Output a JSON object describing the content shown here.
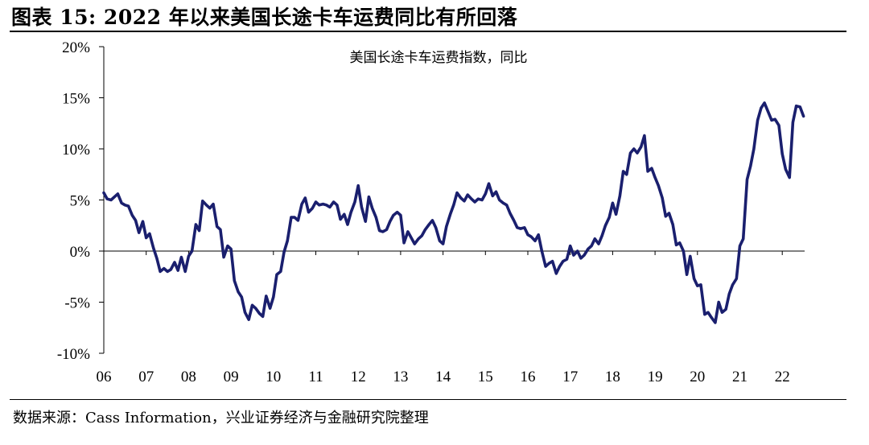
{
  "header": {
    "title": "图表 15:  2022 年以来美国长途卡车运费同比有所回落"
  },
  "footer": {
    "source": "数据来源：Cass Information，兴业证券经济与金融研究院整理"
  },
  "chart_data": {
    "type": "line",
    "title": "美国长途卡车运费指数，同比",
    "xlabel": "",
    "ylabel": "",
    "ylim": [
      -10,
      20
    ],
    "xlim": [
      2006.0,
      2022.6
    ],
    "grid": false,
    "y_ticks": [
      "-10%",
      "-5%",
      "0%",
      "5%",
      "10%",
      "15%",
      "20%"
    ],
    "y_tick_values": [
      -10,
      -5,
      0,
      5,
      10,
      15,
      20
    ],
    "x_ticks": [
      "06",
      "07",
      "08",
      "09",
      "10",
      "11",
      "12",
      "13",
      "14",
      "15",
      "16",
      "17",
      "18",
      "19",
      "20",
      "21",
      "22"
    ],
    "x_tick_values": [
      2006,
      2007,
      2008,
      2009,
      2010,
      2011,
      2012,
      2013,
      2014,
      2015,
      2016,
      2017,
      2018,
      2019,
      2020,
      2021,
      2022
    ],
    "series": [
      {
        "color": "#1a1f6e",
        "points": [
          [
            2006.0,
            5.7
          ],
          [
            2006.08,
            5.1
          ],
          [
            2006.17,
            5.0
          ],
          [
            2006.25,
            5.3
          ],
          [
            2006.33,
            5.6
          ],
          [
            2006.42,
            4.7
          ],
          [
            2006.5,
            4.5
          ],
          [
            2006.58,
            4.4
          ],
          [
            2006.67,
            3.5
          ],
          [
            2006.75,
            3.0
          ],
          [
            2006.83,
            1.8
          ],
          [
            2006.92,
            2.9
          ],
          [
            2007.0,
            1.3
          ],
          [
            2007.08,
            1.7
          ],
          [
            2007.17,
            0.3
          ],
          [
            2007.25,
            -0.7
          ],
          [
            2007.33,
            -2.0
          ],
          [
            2007.42,
            -1.7
          ],
          [
            2007.5,
            -2.0
          ],
          [
            2007.58,
            -1.8
          ],
          [
            2007.67,
            -1.1
          ],
          [
            2007.75,
            -1.9
          ],
          [
            2007.83,
            -0.6
          ],
          [
            2007.92,
            -2.0
          ],
          [
            2008.0,
            -0.5
          ],
          [
            2008.08,
            0.0
          ],
          [
            2008.17,
            2.6
          ],
          [
            2008.25,
            2.0
          ],
          [
            2008.33,
            4.9
          ],
          [
            2008.42,
            4.5
          ],
          [
            2008.5,
            4.2
          ],
          [
            2008.58,
            4.6
          ],
          [
            2008.67,
            2.4
          ],
          [
            2008.75,
            2.1
          ],
          [
            2008.83,
            -0.6
          ],
          [
            2008.92,
            0.5
          ],
          [
            2009.0,
            0.2
          ],
          [
            2009.08,
            -2.9
          ],
          [
            2009.17,
            -4.0
          ],
          [
            2009.25,
            -4.5
          ],
          [
            2009.33,
            -6.0
          ],
          [
            2009.42,
            -6.7
          ],
          [
            2009.5,
            -5.3
          ],
          [
            2009.58,
            -5.6
          ],
          [
            2009.67,
            -6.1
          ],
          [
            2009.75,
            -6.4
          ],
          [
            2009.83,
            -4.4
          ],
          [
            2009.92,
            -5.6
          ],
          [
            2010.0,
            -4.5
          ],
          [
            2010.08,
            -2.3
          ],
          [
            2010.17,
            -2.0
          ],
          [
            2010.25,
            -0.1
          ],
          [
            2010.33,
            1.0
          ],
          [
            2010.42,
            3.3
          ],
          [
            2010.5,
            3.3
          ],
          [
            2010.58,
            3.0
          ],
          [
            2010.67,
            4.6
          ],
          [
            2010.75,
            5.2
          ],
          [
            2010.83,
            3.8
          ],
          [
            2010.92,
            4.2
          ],
          [
            2011.0,
            4.8
          ],
          [
            2011.08,
            4.5
          ],
          [
            2011.17,
            4.6
          ],
          [
            2011.25,
            4.5
          ],
          [
            2011.33,
            4.3
          ],
          [
            2011.42,
            4.8
          ],
          [
            2011.5,
            4.5
          ],
          [
            2011.58,
            3.1
          ],
          [
            2011.67,
            3.6
          ],
          [
            2011.75,
            2.6
          ],
          [
            2011.83,
            3.8
          ],
          [
            2011.92,
            4.8
          ],
          [
            2012.0,
            6.4
          ],
          [
            2012.08,
            4.3
          ],
          [
            2012.17,
            2.9
          ],
          [
            2012.25,
            5.3
          ],
          [
            2012.33,
            4.2
          ],
          [
            2012.42,
            3.3
          ],
          [
            2012.5,
            2.0
          ],
          [
            2012.58,
            1.9
          ],
          [
            2012.67,
            2.1
          ],
          [
            2012.75,
            2.9
          ],
          [
            2012.83,
            3.5
          ],
          [
            2012.92,
            3.8
          ],
          [
            2013.0,
            3.5
          ],
          [
            2013.08,
            0.8
          ],
          [
            2013.17,
            1.9
          ],
          [
            2013.25,
            1.3
          ],
          [
            2013.33,
            0.7
          ],
          [
            2013.42,
            1.2
          ],
          [
            2013.5,
            1.5
          ],
          [
            2013.58,
            2.1
          ],
          [
            2013.67,
            2.6
          ],
          [
            2013.75,
            3.0
          ],
          [
            2013.83,
            2.3
          ],
          [
            2013.92,
            1.0
          ],
          [
            2014.0,
            0.7
          ],
          [
            2014.08,
            2.4
          ],
          [
            2014.17,
            3.6
          ],
          [
            2014.25,
            4.5
          ],
          [
            2014.33,
            5.7
          ],
          [
            2014.42,
            5.2
          ],
          [
            2014.5,
            4.9
          ],
          [
            2014.58,
            5.5
          ],
          [
            2014.67,
            5.1
          ],
          [
            2014.75,
            4.8
          ],
          [
            2014.83,
            5.1
          ],
          [
            2014.92,
            5.0
          ],
          [
            2015.0,
            5.6
          ],
          [
            2015.08,
            6.6
          ],
          [
            2015.17,
            5.4
          ],
          [
            2015.25,
            5.8
          ],
          [
            2015.33,
            5.0
          ],
          [
            2015.42,
            4.7
          ],
          [
            2015.5,
            4.5
          ],
          [
            2015.58,
            3.7
          ],
          [
            2015.67,
            3.0
          ],
          [
            2015.75,
            2.3
          ],
          [
            2015.83,
            2.2
          ],
          [
            2015.92,
            2.3
          ],
          [
            2016.0,
            1.6
          ],
          [
            2016.08,
            1.4
          ],
          [
            2016.17,
            1.0
          ],
          [
            2016.25,
            1.6
          ],
          [
            2016.33,
            0.0
          ],
          [
            2016.42,
            -1.5
          ],
          [
            2016.5,
            -1.2
          ],
          [
            2016.58,
            -1.0
          ],
          [
            2016.67,
            -2.2
          ],
          [
            2016.75,
            -1.5
          ],
          [
            2016.83,
            -1.0
          ],
          [
            2016.92,
            -0.8
          ],
          [
            2017.0,
            0.5
          ],
          [
            2017.08,
            -0.4
          ],
          [
            2017.17,
            0.0
          ],
          [
            2017.25,
            -0.7
          ],
          [
            2017.33,
            -0.4
          ],
          [
            2017.42,
            0.2
          ],
          [
            2017.5,
            0.5
          ],
          [
            2017.58,
            1.2
          ],
          [
            2017.67,
            0.7
          ],
          [
            2017.75,
            1.5
          ],
          [
            2017.83,
            2.5
          ],
          [
            2017.92,
            3.3
          ],
          [
            2018.0,
            4.7
          ],
          [
            2018.08,
            3.6
          ],
          [
            2018.17,
            5.4
          ],
          [
            2018.25,
            7.8
          ],
          [
            2018.33,
            7.5
          ],
          [
            2018.42,
            9.6
          ],
          [
            2018.5,
            10.0
          ],
          [
            2018.58,
            9.6
          ],
          [
            2018.67,
            10.2
          ],
          [
            2018.75,
            11.3
          ],
          [
            2018.83,
            7.8
          ],
          [
            2018.92,
            8.1
          ],
          [
            2019.0,
            7.2
          ],
          [
            2019.08,
            6.4
          ],
          [
            2019.17,
            5.2
          ],
          [
            2019.25,
            3.4
          ],
          [
            2019.33,
            3.7
          ],
          [
            2019.42,
            2.6
          ],
          [
            2019.5,
            0.6
          ],
          [
            2019.58,
            0.8
          ],
          [
            2019.67,
            0.0
          ],
          [
            2019.75,
            -2.3
          ],
          [
            2019.83,
            -0.5
          ],
          [
            2019.92,
            -2.7
          ],
          [
            2020.0,
            -3.4
          ],
          [
            2020.08,
            -3.3
          ],
          [
            2020.17,
            -6.2
          ],
          [
            2020.25,
            -6.0
          ],
          [
            2020.33,
            -6.5
          ],
          [
            2020.42,
            -7.0
          ],
          [
            2020.5,
            -5.0
          ],
          [
            2020.58,
            -6.0
          ],
          [
            2020.67,
            -5.7
          ],
          [
            2020.75,
            -4.2
          ],
          [
            2020.83,
            -3.3
          ],
          [
            2020.92,
            -2.7
          ],
          [
            2021.0,
            0.5
          ],
          [
            2021.08,
            1.2
          ],
          [
            2021.17,
            7.0
          ],
          [
            2021.25,
            8.3
          ],
          [
            2021.33,
            10.0
          ],
          [
            2021.42,
            12.8
          ],
          [
            2021.5,
            14.0
          ],
          [
            2021.58,
            14.5
          ],
          [
            2021.67,
            13.6
          ],
          [
            2021.75,
            12.8
          ],
          [
            2021.83,
            12.9
          ],
          [
            2021.92,
            12.3
          ],
          [
            2022.0,
            9.5
          ],
          [
            2022.08,
            8.0
          ],
          [
            2022.17,
            7.2
          ],
          [
            2022.25,
            12.6
          ],
          [
            2022.33,
            14.2
          ],
          [
            2022.42,
            14.1
          ],
          [
            2022.5,
            13.2
          ]
        ]
      }
    ]
  }
}
